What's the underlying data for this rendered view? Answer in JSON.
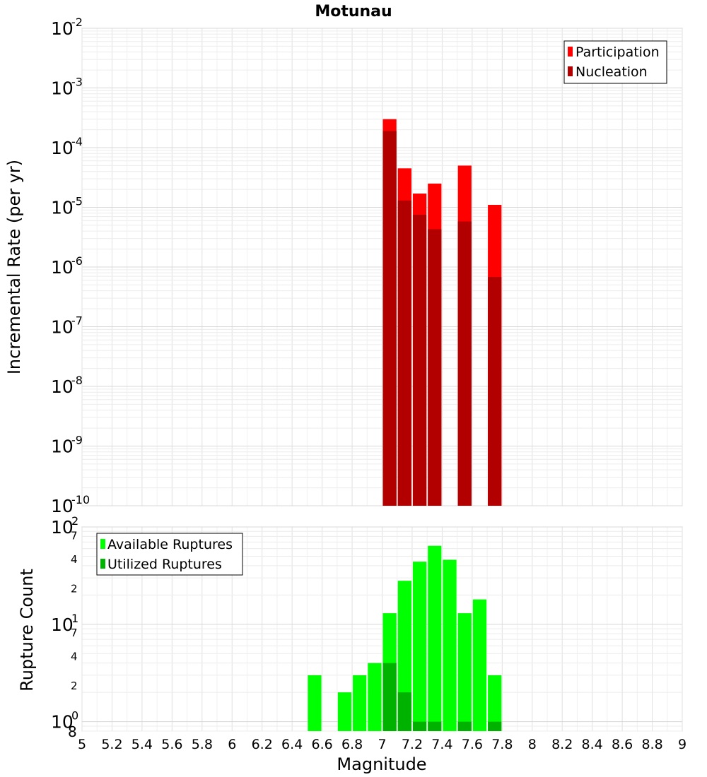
{
  "chart_data": [
    {
      "type": "bar",
      "title": "Motunau",
      "xlabel": "Magnitude",
      "ylabel": "Incremental Rate (per yr)",
      "yscale": "log",
      "xlim": [
        5,
        9
      ],
      "ylim": [
        1e-10,
        0.01
      ],
      "bin_width": 0.1,
      "y_ticks": [
        {
          "base": "10",
          "exp": "-10"
        },
        {
          "base": "10",
          "exp": "-9"
        },
        {
          "base": "10",
          "exp": "-8"
        },
        {
          "base": "10",
          "exp": "-7"
        },
        {
          "base": "10",
          "exp": "-6"
        },
        {
          "base": "10",
          "exp": "-5"
        },
        {
          "base": "10",
          "exp": "-4"
        },
        {
          "base": "10",
          "exp": "-3"
        },
        {
          "base": "10",
          "exp": "-2"
        }
      ],
      "legend_position": "top-right",
      "series": [
        {
          "name": "Participation",
          "color": "#ff0000",
          "x": [
            7.05,
            7.15,
            7.25,
            7.35,
            7.55,
            7.75
          ],
          "values": [
            0.0003,
            4.5e-05,
            1.7e-05,
            2.5e-05,
            5e-05,
            1.1e-05
          ]
        },
        {
          "name": "Nucleation",
          "color": "#b20000",
          "x": [
            7.05,
            7.15,
            7.25,
            7.35,
            7.55,
            7.75
          ],
          "values": [
            0.00019,
            1.3e-05,
            7.5e-06,
            4.3e-06,
            5.8e-06,
            6.8e-07
          ]
        }
      ]
    },
    {
      "type": "bar",
      "xlabel": "Magnitude",
      "ylabel": "Rupture Count",
      "yscale": "log",
      "xlim": [
        5,
        9
      ],
      "ylim": [
        0.8,
        100
      ],
      "x_ticks": [
        "5",
        "5.2",
        "5.4",
        "5.6",
        "5.8",
        "6",
        "6.2",
        "6.4",
        "6.6",
        "6.8",
        "7",
        "7.2",
        "7.4",
        "7.6",
        "7.8",
        "8",
        "8.2",
        "8.4",
        "8.6",
        "8.8",
        "9"
      ],
      "y_major_ticks": [
        {
          "value": 1,
          "base": "10",
          "exp": "0"
        },
        {
          "value": 10,
          "base": "10",
          "exp": "1"
        },
        {
          "value": 100,
          "base": "10",
          "exp": "2"
        }
      ],
      "y_minor_labels": [
        {
          "value": 0.8,
          "label": "8"
        },
        {
          "value": 2,
          "label": "2"
        },
        {
          "value": 4,
          "label": "4"
        },
        {
          "value": 7,
          "label": "7"
        },
        {
          "value": 20,
          "label": "2"
        },
        {
          "value": 40,
          "label": "4"
        },
        {
          "value": 70,
          "label": "7"
        }
      ],
      "legend_position": "top-left",
      "series": [
        {
          "name": "Available Ruptures",
          "color": "#00ff00",
          "x": [
            6.55,
            6.75,
            6.85,
            6.95,
            7.05,
            7.15,
            7.25,
            7.35,
            7.45,
            7.55,
            7.65,
            7.75
          ],
          "values": [
            3,
            2,
            3,
            4,
            13,
            28,
            44,
            64,
            46,
            13,
            18,
            3
          ]
        },
        {
          "name": "Utilized Ruptures",
          "color": "#00b200",
          "x": [
            7.05,
            7.15,
            7.25,
            7.35,
            7.55,
            7.75
          ],
          "values": [
            4,
            2,
            1,
            1,
            1,
            1
          ]
        }
      ]
    }
  ]
}
